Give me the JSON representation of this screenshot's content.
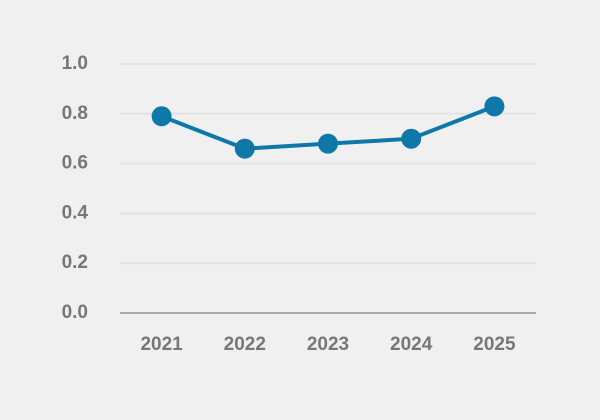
{
  "chart_data": {
    "type": "line",
    "categories": [
      "2021",
      "2022",
      "2023",
      "2024",
      "2025"
    ],
    "values": [
      0.79,
      0.66,
      0.68,
      0.7,
      0.83
    ],
    "color": "#0e78a8",
    "ylim": [
      0,
      1
    ],
    "yticks": [
      {
        "value": 0,
        "label": "0.0"
      },
      0.2,
      0.4,
      0.6,
      0.8,
      {
        "value": 1,
        "label": "1.0"
      }
    ],
    "grid": true
  }
}
